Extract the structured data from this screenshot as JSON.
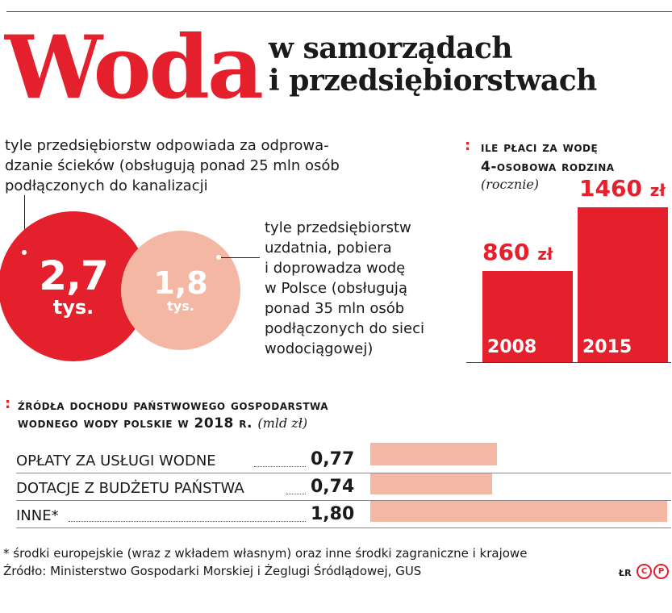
{
  "title": {
    "main": "Woda",
    "sub_line1": "w samorządach",
    "sub_line2": "i przedsiębiorstwach"
  },
  "circles": {
    "first": {
      "value": "2,7",
      "unit": "tys.",
      "description_lines": [
        "tyle przedsiębiorstw odpowiada za odprowa-",
        "dzanie ścieków (obsługują ponad 25 mln osób",
        "podłączonych do kanalizacji"
      ]
    },
    "second": {
      "value": "1,8",
      "unit": "tys.",
      "description_lines": [
        "tyle przedsiębiorstw",
        "uzdatnia, pobiera",
        "i doprowadza wodę",
        "w Polsce (obsługują",
        "ponad 35 mln osób",
        "podłączonych do sieci",
        "wodociągowej)"
      ]
    }
  },
  "cost_chart": {
    "heading_line1": "Ile płaci za wodę",
    "heading_line2": "4-osobowa rodzina",
    "note": "(rocznie)"
  },
  "income_chart": {
    "heading_line1": "Źródła dochodu Państwowego Gospodarstwa",
    "heading_line2": "Wodnego Wody Polskie w 2018 r.",
    "unit_note": "(mld zł)"
  },
  "colors": {
    "accent_red": "#e3202b",
    "accent_pink": "#f4b7a3"
  },
  "chart_data": [
    {
      "type": "bar",
      "title": "Ile płaci za wodę 4-osobowa rodzina",
      "subtitle": "(rocznie)",
      "categories": [
        "2008",
        "2015"
      ],
      "values": [
        860,
        1460
      ],
      "value_labels": [
        "860",
        "1460"
      ],
      "unit_label": "zł",
      "ylim": [
        0,
        1640
      ]
    },
    {
      "type": "bar",
      "orientation": "horizontal",
      "title": "Źródła dochodu Państwowego Gospodarstwa Wodnego Wody Polskie w 2018 r.",
      "subtitle": "(mld zł)",
      "categories": [
        "OPŁATY ZA USŁUGI WODNE",
        "DOTACJE Z BUDŻETU PAŃSTWA",
        "INNE*"
      ],
      "values": [
        0.77,
        0.74,
        1.8
      ],
      "value_labels": [
        "0,77",
        "0,74",
        "1,80"
      ],
      "xlim": [
        0,
        1.8
      ]
    }
  ],
  "footer": {
    "footnote": "* środki europejskie (wraz z wkładem własnym) oraz inne środki zagraniczne i krajowe",
    "source": "Źródło: Ministerstwo Gospodarki Morskiej i Żeglugi Śródlądowej, GUS",
    "author": "ŁR",
    "copyright_c": "C",
    "copyright_p": "P"
  }
}
